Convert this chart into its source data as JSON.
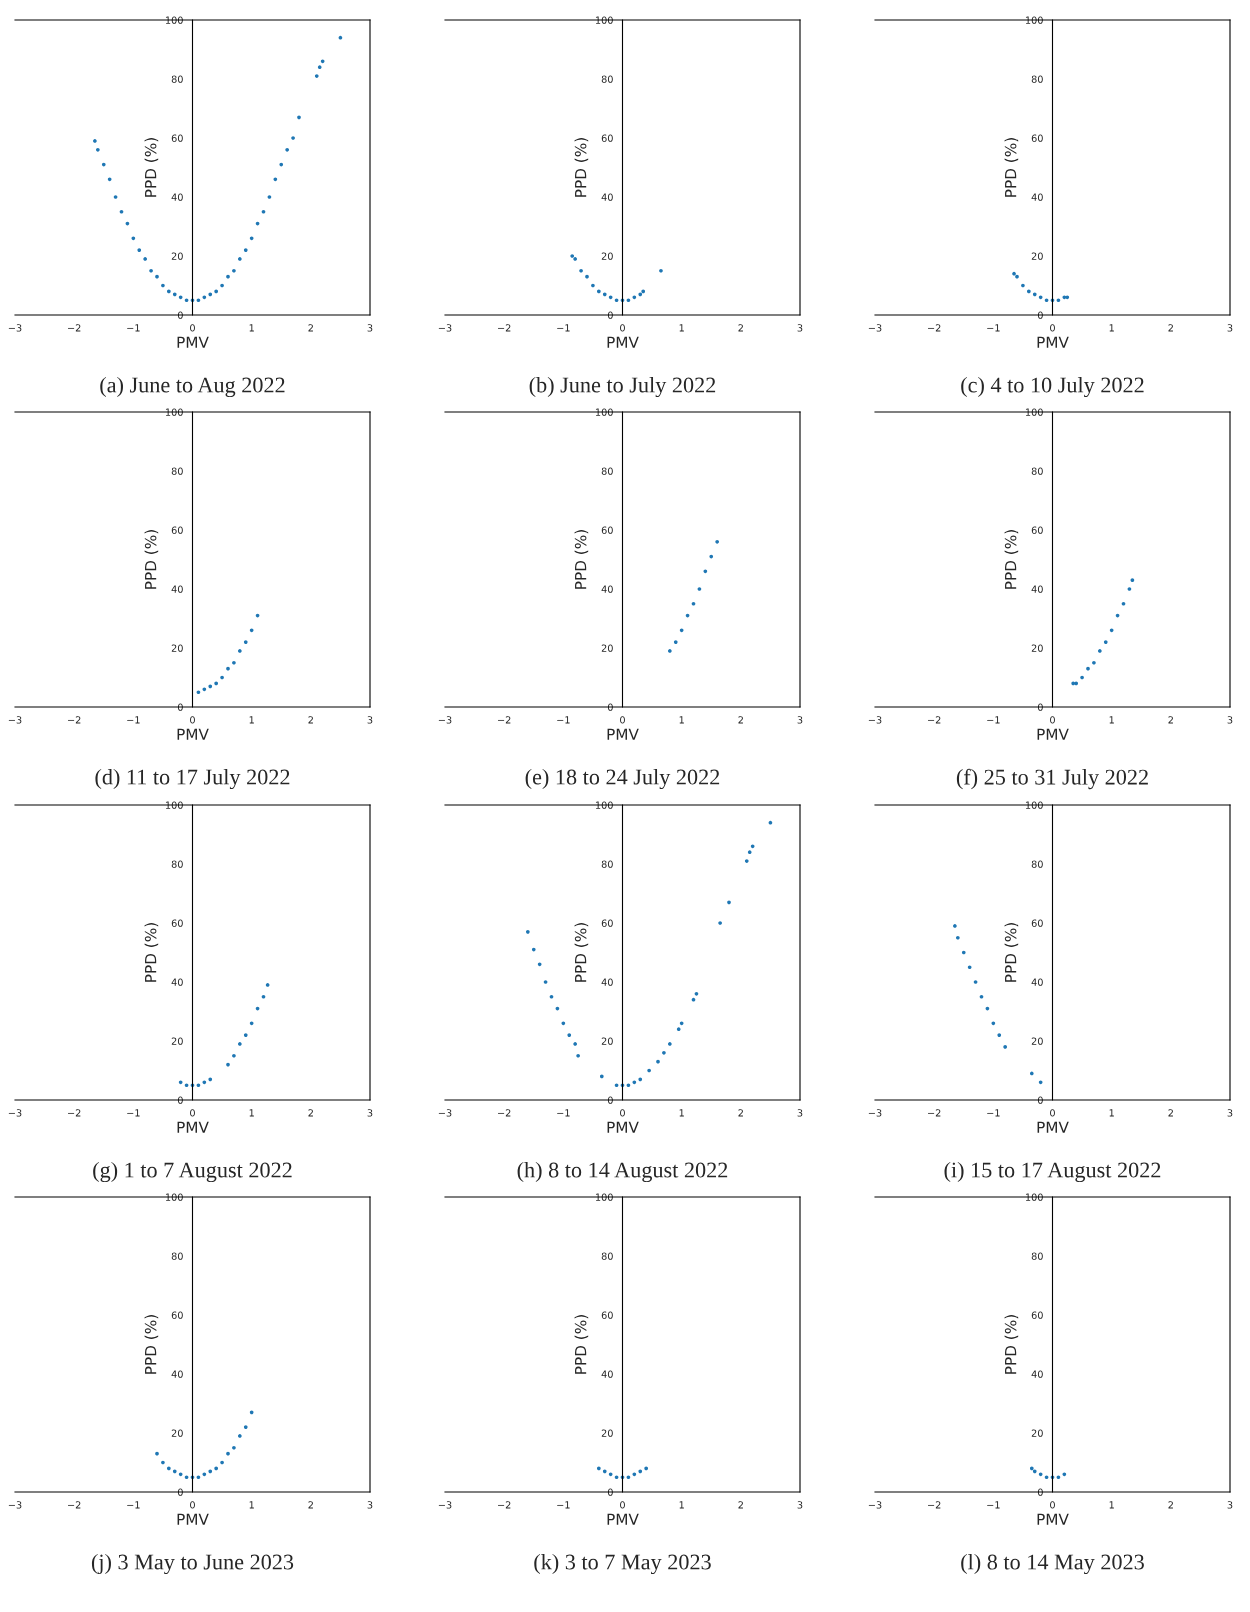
{
  "chart_data": [
    {
      "type": "scatter",
      "title": "(a) June to Aug 2022",
      "xlabel": "PMV",
      "ylabel": "PPD (%)",
      "marker": "circle",
      "xlim": [
        -3,
        3
      ],
      "ylim": [
        0,
        100
      ],
      "xticks": [
        {
          "value": -3,
          "label": "−3"
        },
        {
          "value": -2,
          "label": "−2"
        },
        {
          "value": -1,
          "label": "−1"
        },
        0,
        1,
        2,
        3
      ],
      "yticks": [
        0,
        20,
        40,
        60,
        80,
        100
      ],
      "series": [
        {
          "color": "#1f77b4",
          "x": [
            -1.65,
            -1.6,
            -1.5,
            -1.4,
            -1.3,
            -1.2,
            -1.1,
            -1.0,
            -0.9,
            -0.8,
            -0.7,
            -0.6,
            -0.5,
            -0.4,
            -0.3,
            -0.2,
            -0.1,
            0,
            0.1,
            0.2,
            0.3,
            0.4,
            0.5,
            0.6,
            0.7,
            0.8,
            0.9,
            1.0,
            1.1,
            1.2,
            1.3,
            1.4,
            1.5,
            1.6,
            1.7,
            1.8,
            2.1,
            2.15,
            2.2,
            2.5
          ],
          "values": [
            59,
            56,
            51,
            46,
            40,
            35,
            31,
            26,
            22,
            19,
            15,
            13,
            10,
            8,
            7,
            6,
            5,
            5,
            5,
            6,
            7,
            8,
            10,
            13,
            15,
            19,
            22,
            26,
            31,
            35,
            40,
            46,
            51,
            56,
            60,
            67,
            81,
            84,
            86,
            94
          ]
        }
      ]
    },
    {
      "type": "scatter",
      "title": "(b) June to July 2022",
      "xlabel": "PMV",
      "ylabel": "PPD (%)",
      "marker": "circle",
      "xlim": [
        -3,
        3
      ],
      "ylim": [
        0,
        100
      ],
      "xticks": [
        {
          "value": -3,
          "label": "−3"
        },
        {
          "value": -2,
          "label": "−2"
        },
        {
          "value": -1,
          "label": "−1"
        },
        0,
        1,
        2,
        3
      ],
      "yticks": [
        0,
        20,
        40,
        60,
        80,
        100
      ],
      "series": [
        {
          "color": "#1f77b4",
          "x": [
            -0.85,
            -0.8,
            -0.7,
            -0.6,
            -0.5,
            -0.4,
            -0.3,
            -0.2,
            -0.1,
            0,
            0.1,
            0.2,
            0.3,
            0.35,
            0.65
          ],
          "values": [
            20,
            19,
            15,
            13,
            10,
            8,
            7,
            6,
            5,
            5,
            5,
            6,
            7,
            8,
            15
          ]
        }
      ]
    },
    {
      "type": "scatter",
      "title": "(c) 4 to 10 July 2022",
      "xlabel": "PMV",
      "ylabel": "PPD (%)",
      "marker": "circle",
      "xlim": [
        -3,
        3
      ],
      "ylim": [
        0,
        100
      ],
      "xticks": [
        {
          "value": -3,
          "label": "−3"
        },
        {
          "value": -2,
          "label": "−2"
        },
        {
          "value": -1,
          "label": "−1"
        },
        0,
        1,
        2,
        3
      ],
      "yticks": [
        0,
        20,
        40,
        60,
        80,
        100
      ],
      "series": [
        {
          "color": "#1f77b4",
          "x": [
            -0.65,
            -0.6,
            -0.5,
            -0.4,
            -0.3,
            -0.2,
            -0.1,
            0,
            0.1,
            0.2,
            0.25
          ],
          "values": [
            14,
            13,
            10,
            8,
            7,
            6,
            5,
            5,
            5,
            6,
            6
          ]
        }
      ]
    },
    {
      "type": "scatter",
      "title": "(d) 11 to 17 July 2022",
      "xlabel": "PMV",
      "ylabel": "PPD (%)",
      "marker": "circle",
      "xlim": [
        -3,
        3
      ],
      "ylim": [
        0,
        100
      ],
      "xticks": [
        {
          "value": -3,
          "label": "−3"
        },
        {
          "value": -2,
          "label": "−2"
        },
        {
          "value": -1,
          "label": "−1"
        },
        0,
        1,
        2,
        3
      ],
      "yticks": [
        0,
        20,
        40,
        60,
        80,
        100
      ],
      "series": [
        {
          "color": "#1f77b4",
          "x": [
            0.1,
            0.2,
            0.3,
            0.4,
            0.5,
            0.6,
            0.7,
            0.8,
            0.9,
            1.0,
            1.1
          ],
          "values": [
            5,
            6,
            7,
            8,
            10,
            13,
            15,
            19,
            22,
            26,
            31
          ]
        }
      ]
    },
    {
      "type": "scatter",
      "title": "(e) 18 to 24 July 2022",
      "xlabel": "PMV",
      "ylabel": "PPD (%)",
      "marker": "circle",
      "xlim": [
        -3,
        3
      ],
      "ylim": [
        0,
        100
      ],
      "xticks": [
        {
          "value": -3,
          "label": "−3"
        },
        {
          "value": -2,
          "label": "−2"
        },
        {
          "value": -1,
          "label": "−1"
        },
        0,
        1,
        2,
        3
      ],
      "yticks": [
        0,
        20,
        40,
        60,
        80,
        100
      ],
      "series": [
        {
          "color": "#1f77b4",
          "x": [
            0.8,
            0.9,
            1.0,
            1.1,
            1.2,
            1.3,
            1.4,
            1.5,
            1.6
          ],
          "values": [
            19,
            22,
            26,
            31,
            35,
            40,
            46,
            51,
            56
          ]
        }
      ]
    },
    {
      "type": "scatter",
      "title": "(f) 25 to 31 July 2022",
      "xlabel": "PMV",
      "ylabel": "PPD (%)",
      "marker": "circle",
      "xlim": [
        -3,
        3
      ],
      "ylim": [
        0,
        100
      ],
      "xticks": [
        {
          "value": -3,
          "label": "−3"
        },
        {
          "value": -2,
          "label": "−2"
        },
        {
          "value": -1,
          "label": "−1"
        },
        0,
        1,
        2,
        3
      ],
      "yticks": [
        0,
        20,
        40,
        60,
        80,
        100
      ],
      "series": [
        {
          "color": "#1f77b4",
          "x": [
            0.35,
            0.4,
            0.5,
            0.6,
            0.7,
            0.8,
            0.9,
            1.0,
            1.1,
            1.2,
            1.3,
            1.35
          ],
          "values": [
            8,
            8,
            10,
            13,
            15,
            19,
            22,
            26,
            31,
            35,
            40,
            43
          ]
        }
      ]
    },
    {
      "type": "scatter",
      "title": "(g) 1 to 7 August 2022",
      "xlabel": "PMV",
      "ylabel": "PPD (%)",
      "marker": "circle",
      "xlim": [
        -3,
        3
      ],
      "ylim": [
        0,
        100
      ],
      "xticks": [
        {
          "value": -3,
          "label": "−3"
        },
        {
          "value": -2,
          "label": "−2"
        },
        {
          "value": -1,
          "label": "−1"
        },
        0,
        1,
        2,
        3
      ],
      "yticks": [
        0,
        20,
        40,
        60,
        80,
        100
      ],
      "series": [
        {
          "color": "#1f77b4",
          "x": [
            -0.2,
            -0.1,
            0,
            0.1,
            0.2,
            0.3,
            0.6,
            0.7,
            0.8,
            0.9,
            1.0,
            1.1,
            1.2,
            1.27
          ],
          "values": [
            6,
            5,
            5,
            5,
            6,
            7,
            12,
            15,
            19,
            22,
            26,
            31,
            35,
            39
          ]
        }
      ]
    },
    {
      "type": "scatter",
      "title": "(h) 8 to 14 August 2022",
      "xlabel": "PMV",
      "ylabel": "PPD (%)",
      "marker": "circle",
      "xlim": [
        -3,
        3
      ],
      "ylim": [
        0,
        100
      ],
      "xticks": [
        {
          "value": -3,
          "label": "−3"
        },
        {
          "value": -2,
          "label": "−2"
        },
        {
          "value": -1,
          "label": "−1"
        },
        0,
        1,
        2,
        3
      ],
      "yticks": [
        0,
        20,
        40,
        60,
        80,
        100
      ],
      "series": [
        {
          "color": "#1f77b4",
          "x": [
            -1.6,
            -1.5,
            -1.4,
            -1.3,
            -1.2,
            -1.1,
            -1.0,
            -0.9,
            -0.8,
            -0.75,
            -0.35,
            -0.1,
            0,
            0.1,
            0.2,
            0.3,
            0.45,
            0.6,
            0.7,
            0.8,
            0.95,
            1.0,
            1.2,
            1.25,
            1.65,
            1.8,
            2.1,
            2.15,
            2.2,
            2.5
          ],
          "values": [
            57,
            51,
            46,
            40,
            35,
            31,
            26,
            22,
            19,
            15,
            8,
            5,
            5,
            5,
            6,
            7,
            10,
            13,
            16,
            19,
            24,
            26,
            34,
            36,
            60,
            67,
            81,
            84,
            86,
            94
          ]
        }
      ]
    },
    {
      "type": "scatter",
      "title": "(i) 15 to 17 August 2022",
      "xlabel": "PMV",
      "ylabel": "PPD (%)",
      "marker": "circle",
      "xlim": [
        -3,
        3
      ],
      "ylim": [
        0,
        100
      ],
      "xticks": [
        {
          "value": -3,
          "label": "−3"
        },
        {
          "value": -2,
          "label": "−2"
        },
        {
          "value": -1,
          "label": "−1"
        },
        0,
        1,
        2,
        3
      ],
      "yticks": [
        0,
        20,
        40,
        60,
        80,
        100
      ],
      "series": [
        {
          "color": "#1f77b4",
          "x": [
            -1.65,
            -1.6,
            -1.5,
            -1.4,
            -1.3,
            -1.2,
            -1.1,
            -1.0,
            -0.9,
            -0.8,
            -0.35,
            -0.2
          ],
          "values": [
            59,
            55,
            50,
            45,
            40,
            35,
            31,
            26,
            22,
            18,
            9,
            6
          ]
        }
      ]
    },
    {
      "type": "scatter",
      "title": "(j) 3 May to June 2023",
      "xlabel": "PMV",
      "ylabel": "PPD (%)",
      "marker": "circle",
      "xlim": [
        -3,
        3
      ],
      "ylim": [
        0,
        100
      ],
      "xticks": [
        {
          "value": -3,
          "label": "−3"
        },
        {
          "value": -2,
          "label": "−2"
        },
        {
          "value": -1,
          "label": "−1"
        },
        0,
        1,
        2,
        3
      ],
      "yticks": [
        0,
        20,
        40,
        60,
        80,
        100
      ],
      "series": [
        {
          "color": "#1f77b4",
          "x": [
            -0.6,
            -0.5,
            -0.4,
            -0.3,
            -0.2,
            -0.1,
            0,
            0.1,
            0.2,
            0.3,
            0.4,
            0.5,
            0.6,
            0.7,
            0.8,
            0.9,
            1.0
          ],
          "values": [
            13,
            10,
            8,
            7,
            6,
            5,
            5,
            5,
            6,
            7,
            8,
            10,
            13,
            15,
            19,
            22,
            27
          ]
        }
      ]
    },
    {
      "type": "scatter",
      "title": "(k) 3 to 7 May 2023",
      "xlabel": "PMV",
      "ylabel": "PPD (%)",
      "marker": "circle",
      "xlim": [
        -3,
        3
      ],
      "ylim": [
        0,
        100
      ],
      "xticks": [
        {
          "value": -3,
          "label": "−3"
        },
        {
          "value": -2,
          "label": "−2"
        },
        {
          "value": -1,
          "label": "−1"
        },
        0,
        1,
        2,
        3
      ],
      "yticks": [
        0,
        20,
        40,
        60,
        80,
        100
      ],
      "series": [
        {
          "color": "#1f77b4",
          "x": [
            -0.4,
            -0.3,
            -0.2,
            -0.1,
            0,
            0.1,
            0.2,
            0.3,
            0.4
          ],
          "values": [
            8,
            7,
            6,
            5,
            5,
            5,
            6,
            7,
            8
          ]
        }
      ]
    },
    {
      "type": "scatter",
      "title": "(l) 8 to 14 May 2023",
      "xlabel": "PMV",
      "ylabel": "PPD (%)",
      "marker": "circle",
      "xlim": [
        -3,
        3
      ],
      "ylim": [
        0,
        100
      ],
      "xticks": [
        {
          "value": -3,
          "label": "−3"
        },
        {
          "value": -2,
          "label": "−2"
        },
        {
          "value": -1,
          "label": "−1"
        },
        0,
        1,
        2,
        3
      ],
      "yticks": [
        0,
        20,
        40,
        60,
        80,
        100
      ],
      "series": [
        {
          "color": "#1f77b4",
          "x": [
            -0.35,
            -0.3,
            -0.2,
            -0.1,
            0,
            0.1,
            0.2
          ],
          "values": [
            8,
            7,
            6,
            5,
            5,
            5,
            6
          ]
        }
      ]
    }
  ]
}
